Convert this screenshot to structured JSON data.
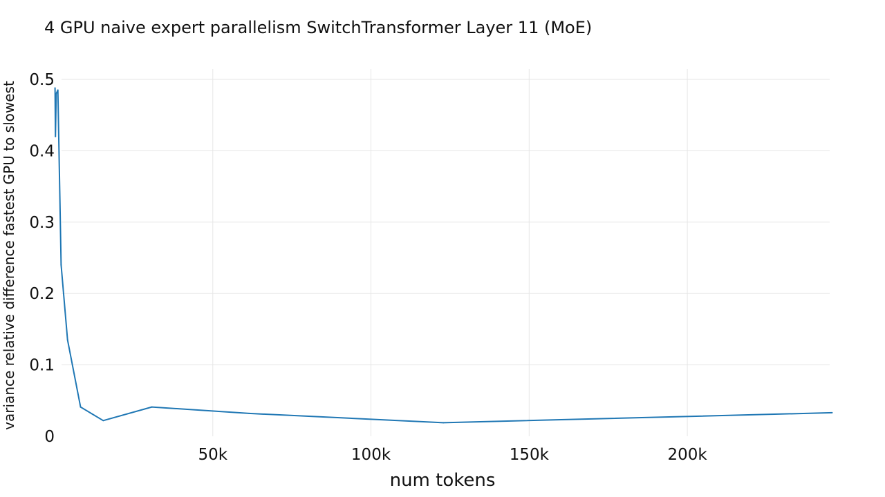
{
  "chart_data": {
    "type": "line",
    "title": "4 GPU naive expert parallelism SwitchTransformer Layer 11 (MoE)",
    "xlabel": "num tokens",
    "ylabel": "variance relative difference fastest GPU to slowest",
    "xlim": [
      0,
      245000
    ],
    "ylim": [
      0,
      0.5
    ],
    "grid": true,
    "x_ticks": [
      {
        "value": 50000,
        "label": "50k"
      },
      {
        "value": 100000,
        "label": "100k"
      },
      {
        "value": 150000,
        "label": "150k"
      },
      {
        "value": 200000,
        "label": "200k"
      }
    ],
    "y_ticks": [
      {
        "value": 0,
        "label": "0"
      },
      {
        "value": 0.1,
        "label": "0.1"
      },
      {
        "value": 0.2,
        "label": "0.2"
      },
      {
        "value": 0.3,
        "label": "0.3"
      },
      {
        "value": 0.4,
        "label": "0.4"
      },
      {
        "value": 0.5,
        "label": "0.5"
      }
    ],
    "series": [
      {
        "color": "#1f77b4",
        "x": [
          128,
          256,
          512,
          1024,
          2048,
          4096,
          8192,
          15360,
          30720,
          61440,
          122880,
          245760
        ],
        "y": [
          0.488,
          0.42,
          0.48,
          0.485,
          0.24,
          0.135,
          0.041,
          0.022,
          0.041,
          0.032,
          0.019,
          0.033
        ]
      }
    ]
  }
}
